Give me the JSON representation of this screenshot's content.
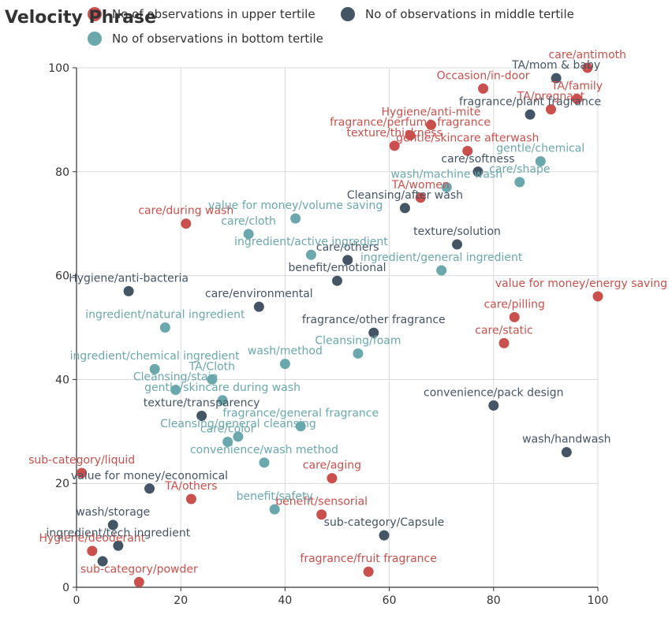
{
  "chart_data": {
    "type": "scatter",
    "title": "Velocity Phrase",
    "xlim": [
      0,
      100
    ],
    "ylim": [
      0,
      100
    ],
    "x_ticks": [
      "0",
      "20",
      "40",
      "60",
      "80",
      "100"
    ],
    "y_ticks": [
      "0",
      "20",
      "40",
      "60",
      "80",
      "100"
    ],
    "grid": true,
    "legend_position": "top",
    "colors": {
      "upper": "#c9504c",
      "middle": "#445566",
      "bottom": "#6aa8ad"
    },
    "series": [
      {
        "key": "upper",
        "name": "No of observations in upper tertile",
        "points": [
          {
            "label": "care/antimoth",
            "x": 98,
            "y": 100
          },
          {
            "label": "Occasion/in-door",
            "x": 78,
            "y": 96
          },
          {
            "label": "TA/pregnant",
            "x": 91,
            "y": 92
          },
          {
            "label": "TA/family",
            "x": 96,
            "y": 94
          },
          {
            "label": "Hygiene/anti-mite",
            "x": 68,
            "y": 89
          },
          {
            "label": "fragrance/perfume fragrance",
            "x": 64,
            "y": 87
          },
          {
            "label": "texture/thickness",
            "x": 61,
            "y": 85
          },
          {
            "label": "gentle/skincare afterwash",
            "x": 75,
            "y": 84
          },
          {
            "label": "TA/women",
            "x": 66,
            "y": 75
          },
          {
            "label": "care/during wash",
            "x": 21,
            "y": 70
          },
          {
            "label": "value for money/energy saving",
            "x": 100,
            "y": 56
          },
          {
            "label": "care/pilling",
            "x": 84,
            "y": 52
          },
          {
            "label": "care/static",
            "x": 82,
            "y": 47
          },
          {
            "label": "sub-category/liquid",
            "x": 1,
            "y": 22
          },
          {
            "label": "care/aging",
            "x": 49,
            "y": 21
          },
          {
            "label": "TA/others",
            "x": 22,
            "y": 17
          },
          {
            "label": "benefit/sensorial",
            "x": 47,
            "y": 14
          },
          {
            "label": "Hygiene/deoderant",
            "x": 3,
            "y": 7
          },
          {
            "label": "fragrance/fruit fragrance",
            "x": 56,
            "y": 3
          },
          {
            "label": "sub-category/powder",
            "x": 12,
            "y": 1
          }
        ]
      },
      {
        "key": "middle",
        "name": "No of observations in middle tertile",
        "points": [
          {
            "label": "TA/mom & baby",
            "x": 92,
            "y": 98
          },
          {
            "label": "fragrance/plant fragrance",
            "x": 87,
            "y": 91
          },
          {
            "label": "care/softness",
            "x": 77,
            "y": 80
          },
          {
            "label": "Cleansing/after wash",
            "x": 63,
            "y": 73
          },
          {
            "label": "texture/solution",
            "x": 73,
            "y": 66
          },
          {
            "label": "care/others",
            "x": 52,
            "y": 63
          },
          {
            "label": "benefit/emotional",
            "x": 50,
            "y": 59
          },
          {
            "label": "Hygiene/anti-bacteria",
            "x": 10,
            "y": 57
          },
          {
            "label": "care/environmental",
            "x": 35,
            "y": 54
          },
          {
            "label": "fragrance/other fragrance",
            "x": 57,
            "y": 49
          },
          {
            "label": "convenience/pack design",
            "x": 80,
            "y": 35
          },
          {
            "label": "texture/transparency",
            "x": 24,
            "y": 33
          },
          {
            "label": "wash/handwash",
            "x": 94,
            "y": 26
          },
          {
            "label": "value for money/economical",
            "x": 14,
            "y": 19
          },
          {
            "label": "wash/storage",
            "x": 7,
            "y": 12
          },
          {
            "label": "sub-category/Capsule",
            "x": 59,
            "y": 10
          },
          {
            "label": "ingredient/tech ingredient",
            "x": 8,
            "y": 8
          },
          {
            "label": "",
            "x": 5,
            "y": 5
          }
        ]
      },
      {
        "key": "bottom",
        "name": "No of observations in bottom tertile",
        "points": [
          {
            "label": "gentle/chemical",
            "x": 89,
            "y": 82
          },
          {
            "label": "care/shape",
            "x": 85,
            "y": 78
          },
          {
            "label": "wash/machine wash",
            "x": 71,
            "y": 77
          },
          {
            "label": "value for money/volume saving",
            "x": 42,
            "y": 71
          },
          {
            "label": "care/cloth",
            "x": 33,
            "y": 68
          },
          {
            "label": "ingredient/active ingredient",
            "x": 45,
            "y": 64
          },
          {
            "label": "ingredient/general ingredient",
            "x": 70,
            "y": 61
          },
          {
            "label": "ingredient/natural ingredient",
            "x": 17,
            "y": 50
          },
          {
            "label": "Cleansing/foam",
            "x": 54,
            "y": 45
          },
          {
            "label": "wash/method",
            "x": 40,
            "y": 43
          },
          {
            "label": "ingredient/chemical ingredient",
            "x": 15,
            "y": 42
          },
          {
            "label": "TA/Cloth",
            "x": 26,
            "y": 40
          },
          {
            "label": "Cleansing/stain",
            "x": 19,
            "y": 38
          },
          {
            "label": "gentle/skincare during wash",
            "x": 28,
            "y": 36
          },
          {
            "label": "fragrance/general fragrance",
            "x": 43,
            "y": 31
          },
          {
            "label": "Cleansing/general cleansing",
            "x": 31,
            "y": 29
          },
          {
            "label": "care/color",
            "x": 29,
            "y": 28
          },
          {
            "label": "convenience/wash method",
            "x": 36,
            "y": 24
          },
          {
            "label": "benefit/safety",
            "x": 38,
            "y": 15
          }
        ]
      }
    ]
  }
}
